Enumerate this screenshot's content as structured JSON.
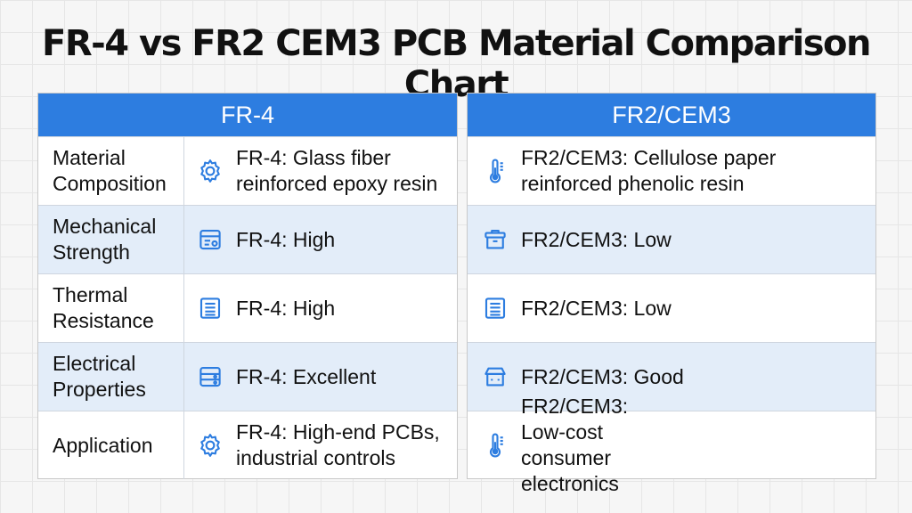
{
  "title": "FR-4 vs FR2 CEM3 PCB Material Comparison Chart",
  "accent_color": "#2d7de0",
  "left": {
    "header": "FR-4",
    "rows": [
      {
        "label": "Material Composition",
        "icon": "gear-icon",
        "value": "FR-4: Glass fiber reinforced epoxy resin"
      },
      {
        "label": "Mechanical Strength",
        "icon": "server-panel-icon",
        "value": "FR-4: High"
      },
      {
        "label": "Thermal Resistance",
        "icon": "document-lines-icon",
        "value": "FR-4: High"
      },
      {
        "label": "Electrical Properties",
        "icon": "server-panel-icon",
        "value": "FR-4: Excellent"
      },
      {
        "label": "Application",
        "icon": "gear-icon",
        "value": "FR-4: High-end PCBs, industrial controls"
      }
    ]
  },
  "right": {
    "header": "FR2/CEM3",
    "rows": [
      {
        "icon": "thermometer-icon",
        "value": "FR2/CEM3: Cellulose paper reinforced phenolic resin"
      },
      {
        "icon": "container-icon",
        "value": "FR2/CEM3: Low"
      },
      {
        "icon": "document-lines-icon",
        "value": "FR2/CEM3: Low"
      },
      {
        "icon": "storefront-icon",
        "value": "FR2/CEM3: Good"
      },
      {
        "icon": "thermometer-icon",
        "value": "FR2/CEM3: Low-cost consumer electronics"
      }
    ]
  }
}
